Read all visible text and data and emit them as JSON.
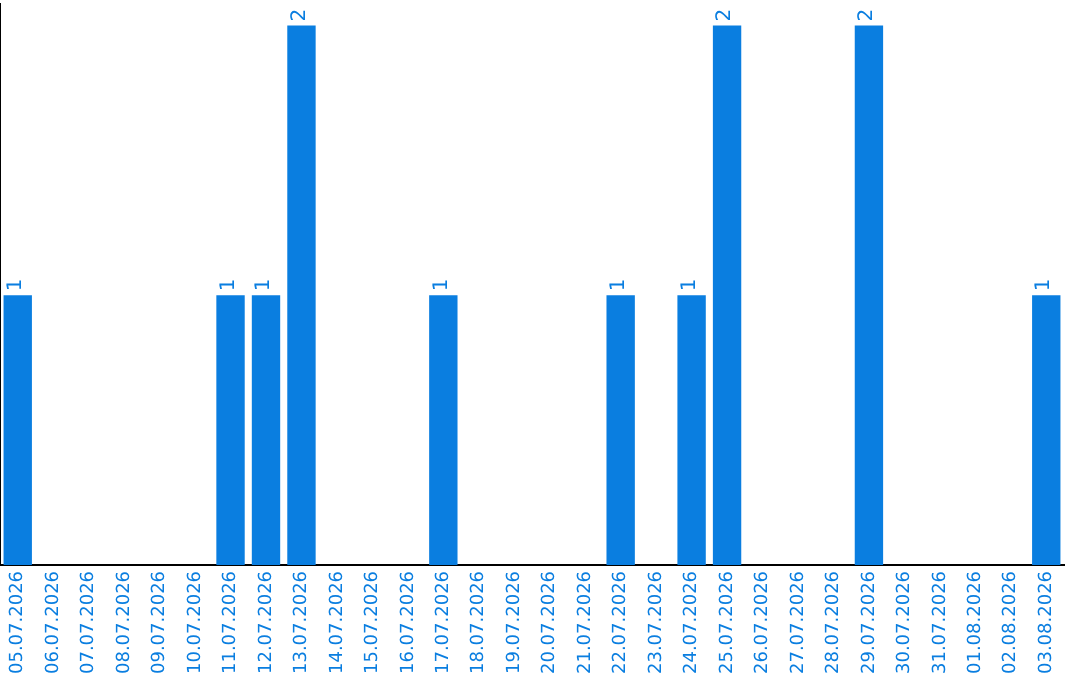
{
  "chart_data": {
    "type": "bar",
    "categories": [
      "05.07.2026",
      "06.07.2026",
      "07.07.2026",
      "08.07.2026",
      "09.07.2026",
      "10.07.2026",
      "11.07.2026",
      "12.07.2026",
      "13.07.2026",
      "14.07.2026",
      "15.07.2026",
      "16.07.2026",
      "17.07.2026",
      "18.07.2026",
      "19.07.2026",
      "20.07.2026",
      "21.07.2026",
      "22.07.2026",
      "23.07.2026",
      "24.07.2026",
      "25.07.2026",
      "26.07.2026",
      "27.07.2026",
      "28.07.2026",
      "29.07.2026",
      "30.07.2026",
      "31.07.2026",
      "01.08.2026",
      "02.08.2026",
      "03.08.2026"
    ],
    "values": [
      1,
      0,
      0,
      0,
      0,
      0,
      1,
      1,
      2,
      0,
      0,
      0,
      1,
      0,
      0,
      0,
      0,
      1,
      0,
      1,
      2,
      0,
      0,
      0,
      2,
      0,
      0,
      0,
      0,
      1
    ],
    "value_labels": [
      "1",
      null,
      null,
      null,
      null,
      null,
      "1",
      "1",
      "2",
      null,
      null,
      null,
      "1",
      null,
      null,
      null,
      null,
      "1",
      null,
      "1",
      "2",
      null,
      null,
      null,
      "2",
      null,
      null,
      null,
      null,
      "1"
    ],
    "color": "#0a7ee0",
    "grid": false,
    "legend": false,
    "tick_labels": "x"
  }
}
